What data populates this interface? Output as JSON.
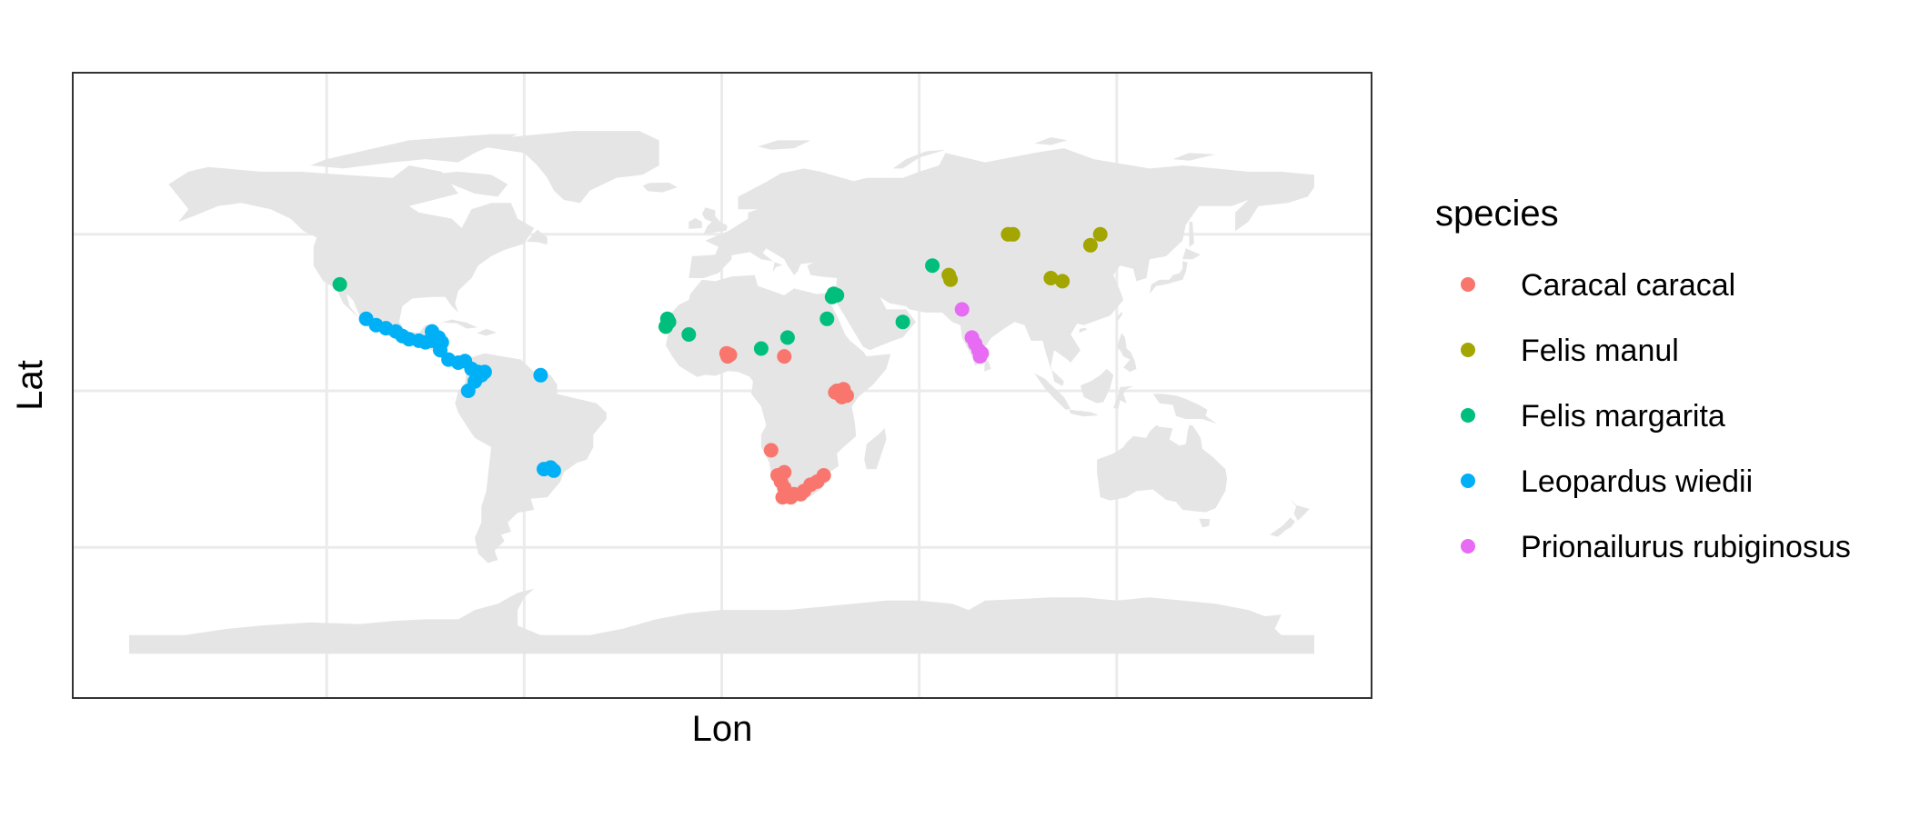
{
  "chart_data": {
    "type": "scatter",
    "projection": "equirectangular world map",
    "xlabel": "Lon",
    "ylabel": "Lat",
    "xlim": [
      -180,
      180
    ],
    "ylim": [
      -90,
      90
    ],
    "grid": true,
    "x_gridlines": [
      -120,
      -60,
      0,
      60,
      120
    ],
    "y_gridlines": [
      -50,
      0,
      50
    ],
    "legend": {
      "title": "species",
      "placement": "right"
    },
    "series": [
      {
        "name": "Caracal caracal",
        "color": "#F8766D",
        "points": [
          [
            1.5,
            12
          ],
          [
            2.5,
            11.5
          ],
          [
            1.8,
            11
          ],
          [
            19,
            11
          ],
          [
            35,
            0
          ],
          [
            37,
            0.5
          ],
          [
            36,
            -1
          ],
          [
            38,
            -1.5
          ],
          [
            34.5,
            -0.5
          ],
          [
            36.5,
            -2
          ],
          [
            15,
            -19
          ],
          [
            17,
            -27
          ],
          [
            19,
            -26
          ],
          [
            18,
            -29
          ],
          [
            19,
            -31
          ],
          [
            20,
            -33.5
          ],
          [
            22,
            -33
          ],
          [
            24,
            -33
          ],
          [
            25,
            -32
          ],
          [
            27,
            -30
          ],
          [
            29,
            -29
          ],
          [
            31,
            -27
          ],
          [
            18.5,
            -34
          ],
          [
            21,
            -34
          ]
        ]
      },
      {
        "name": "Felis manul",
        "color": "#A3A500",
        "points": [
          [
            87,
            50
          ],
          [
            88.5,
            50
          ],
          [
            69,
            37
          ],
          [
            69.5,
            35.5
          ],
          [
            100,
            36
          ],
          [
            103.5,
            35
          ],
          [
            112,
            46.5
          ],
          [
            115,
            50
          ]
        ]
      },
      {
        "name": "Felis margarita",
        "color": "#00BF7D",
        "points": [
          [
            -116,
            34
          ],
          [
            -16.5,
            23
          ],
          [
            -16,
            22
          ],
          [
            -17,
            20.5
          ],
          [
            -10,
            18
          ],
          [
            12,
            13.5
          ],
          [
            20,
            17
          ],
          [
            32,
            23
          ],
          [
            34,
            31
          ],
          [
            35,
            30.5
          ],
          [
            33.5,
            30
          ],
          [
            55,
            22
          ],
          [
            64,
            40
          ]
        ]
      },
      {
        "name": "Leopardus wiedii",
        "color": "#00B0F6",
        "points": [
          [
            -108,
            23
          ],
          [
            -105,
            21
          ],
          [
            -102,
            20
          ],
          [
            -99,
            19
          ],
          [
            -97,
            17.5
          ],
          [
            -95,
            16.5
          ],
          [
            -92,
            16
          ],
          [
            -90,
            15.5
          ],
          [
            -88,
            16
          ],
          [
            -86,
            17
          ],
          [
            -88,
            19
          ],
          [
            -85,
            15.5
          ],
          [
            -85.5,
            13
          ],
          [
            -83,
            10
          ],
          [
            -80,
            9
          ],
          [
            -78,
            9.5
          ],
          [
            -76,
            7
          ],
          [
            -74,
            6
          ],
          [
            -73,
            5
          ],
          [
            -75,
            3
          ],
          [
            -77,
            0
          ],
          [
            -72,
            6
          ],
          [
            -55,
            5
          ],
          [
            -54,
            -25
          ],
          [
            -52,
            -24.5
          ],
          [
            -51,
            -25.5
          ]
        ]
      },
      {
        "name": "Prionailurus rubiginosus",
        "color": "#E76BF3",
        "points": [
          [
            73,
            26
          ],
          [
            76,
            17
          ],
          [
            77,
            15
          ],
          [
            78,
            13
          ],
          [
            79,
            12
          ],
          [
            78.5,
            11
          ]
        ]
      }
    ]
  }
}
